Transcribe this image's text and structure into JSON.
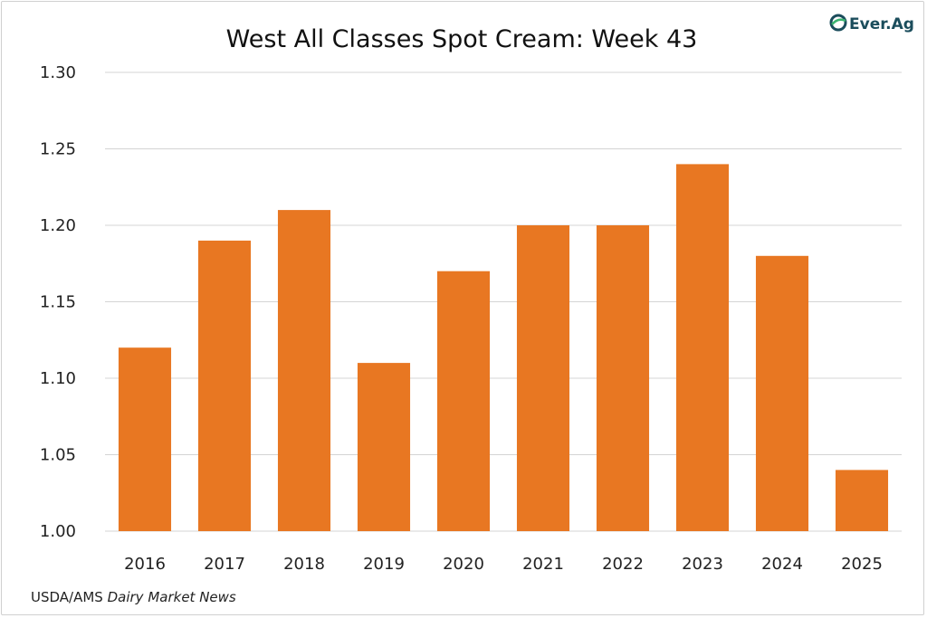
{
  "chart_data": {
    "type": "bar",
    "title": "West All Classes Spot Cream: Week 43",
    "categories": [
      "2016",
      "2017",
      "2018",
      "2019",
      "2020",
      "2021",
      "2022",
      "2023",
      "2024",
      "2025"
    ],
    "values": [
      1.12,
      1.19,
      1.21,
      1.11,
      1.17,
      1.2,
      1.2,
      1.24,
      1.18,
      1.04
    ],
    "ylim": [
      1.0,
      1.3
    ],
    "yticks": [
      "1.00",
      "1.05",
      "1.10",
      "1.15",
      "1.20",
      "1.25",
      "1.30"
    ],
    "xlabel": "",
    "ylabel": "",
    "grid": true,
    "bar_color": "#E87722"
  },
  "source": {
    "prefix": "USDA/AMS ",
    "publication": "Dairy Market News"
  },
  "logo": {
    "text": "Ever.Ag",
    "color": "#1b4d5c",
    "accent": "#3cb371"
  }
}
